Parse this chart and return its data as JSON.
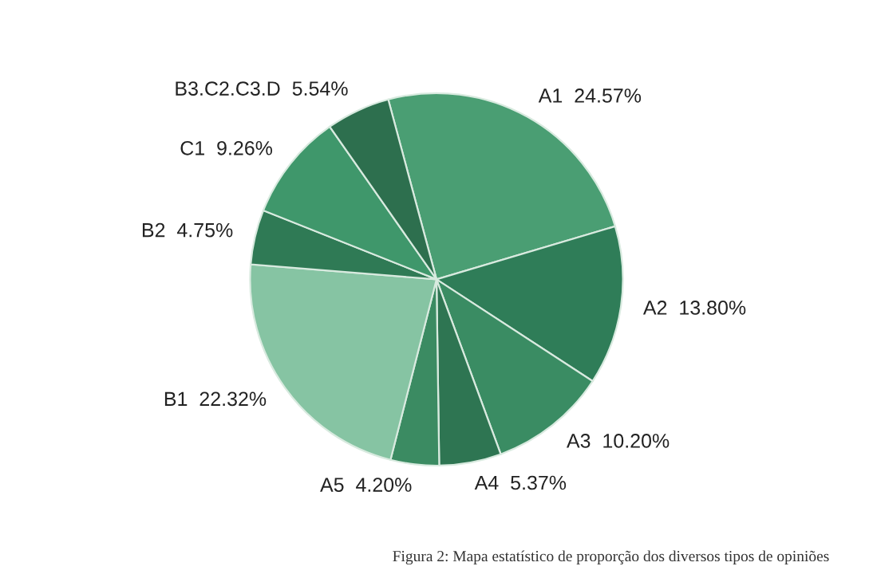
{
  "chart_data": {
    "type": "pie",
    "categories": [
      "A1",
      "A2",
      "A3",
      "A4",
      "A5",
      "B1",
      "B2",
      "C1",
      "B3.C2.C3.D"
    ],
    "values": [
      24.57,
      13.8,
      10.2,
      5.37,
      4.2,
      22.32,
      4.75,
      9.26,
      5.54
    ],
    "value_labels": [
      "24.57%",
      "13.80%",
      "10.20%",
      "5.37%",
      "4.20%",
      "22.32%",
      "4.75%",
      "9.26%",
      "5.54%"
    ],
    "colors": [
      "#4a9e73",
      "#2f7d58",
      "#3a8c63",
      "#2e7552",
      "#3b8b62",
      "#86c4a3",
      "#2f7a55",
      "#3f976b",
      "#2d6f4e"
    ],
    "annotations": [
      "Figura 2: Mapa estatístico de proporção dos diversos tipos de opiniões"
    ],
    "legend": false
  }
}
